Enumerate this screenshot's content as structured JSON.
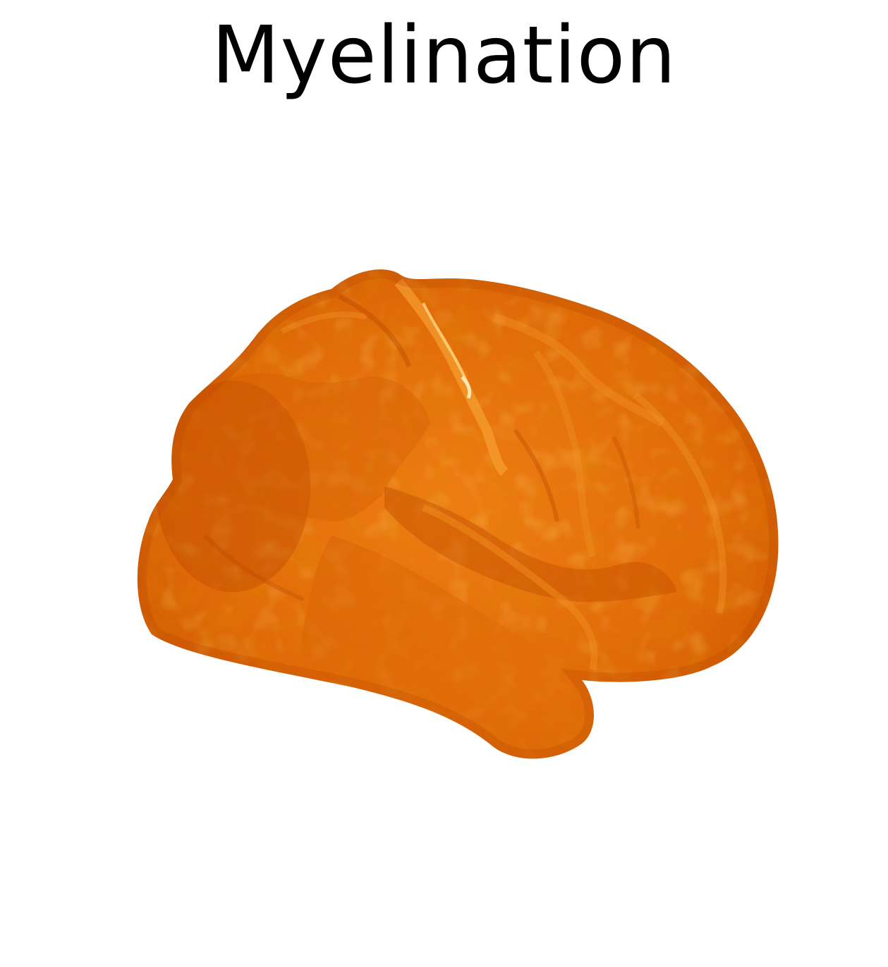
{
  "title": "Myelination",
  "colors": {
    "background": "#ffffff",
    "title_text": "#000000",
    "surface_base": "#e06a08",
    "surface_dark": "#c04a00",
    "surface_light": "#f59a2a",
    "surface_highlight": "#ffd27a"
  },
  "object": "lateral-brain-surface-render"
}
